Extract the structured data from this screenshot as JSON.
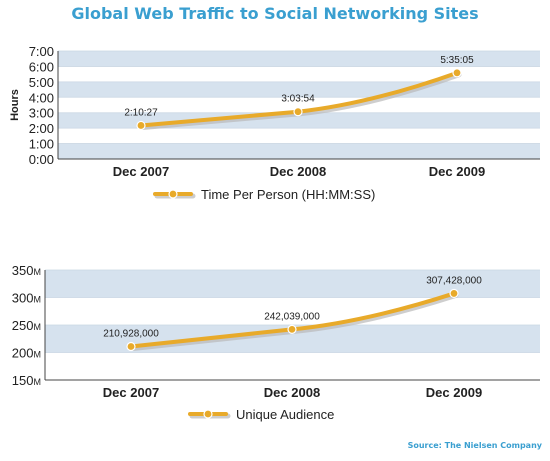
{
  "title": "Global Web Traffic to Social Networking Sites",
  "source": "Source: The Nielsen Company",
  "colors": {
    "line": "#e8aa2a",
    "shadow": "#b9b9b9",
    "band": "#d6e2ee",
    "title": "#3a9fd0"
  },
  "chart_data": [
    {
      "type": "line",
      "categories": [
        "Dec 2007",
        "Dec 2008",
        "Dec 2009"
      ],
      "series": [
        {
          "name": "Time Per Person (HH:MM:SS)",
          "values": [
            2.174,
            3.065,
            5.585
          ],
          "labels": [
            "2:10:27",
            "3:03:54",
            "5:35:05"
          ]
        }
      ],
      "ylabel": "Hours",
      "ylim": [
        0,
        7
      ],
      "yticks": [
        0,
        1,
        2,
        3,
        4,
        5,
        6,
        7
      ],
      "yticklabels": [
        "0:00",
        "1:00",
        "2:00",
        "3:00",
        "4:00",
        "5:00",
        "6:00",
        "7:00"
      ],
      "grid": true,
      "legend": "bottom-center"
    },
    {
      "type": "line",
      "categories": [
        "Dec 2007",
        "Dec 2008",
        "Dec 2009"
      ],
      "series": [
        {
          "name": "Unique Audience",
          "values": [
            210928000,
            242039000,
            307428000
          ],
          "labels": [
            "210,928,000",
            "242,039,000",
            "307,428,000"
          ]
        }
      ],
      "ylabel": "",
      "ylim": [
        150000000,
        350000000
      ],
      "yticks": [
        150000000,
        200000000,
        250000000,
        300000000,
        350000000
      ],
      "yticklabels": [
        "150M",
        "200M",
        "250M",
        "300M",
        "350M"
      ],
      "grid": true,
      "legend": "bottom-center"
    }
  ]
}
